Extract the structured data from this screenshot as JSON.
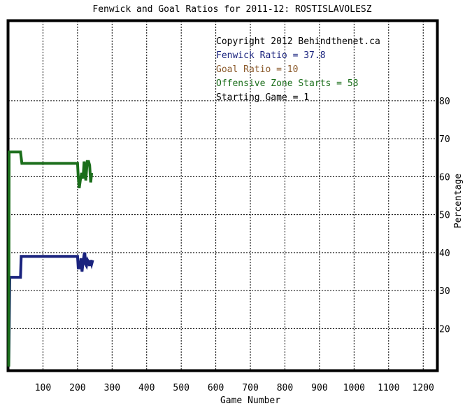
{
  "chart_data": {
    "type": "line",
    "title": "Fenwick and Goal Ratios for 2011-12: ROSTISLAVOLESZ",
    "xlabel": "Game Number",
    "ylabel": "Percentage",
    "xlim": [
      0,
      1240
    ],
    "ylim": [
      9,
      101
    ],
    "grid": true,
    "x_ticks": [
      100,
      200,
      300,
      400,
      500,
      600,
      700,
      800,
      900,
      1000,
      1100,
      1200
    ],
    "y_ticks": [
      20,
      30,
      40,
      50,
      60,
      70,
      80
    ],
    "y_axis_side": "right",
    "annotations": [
      {
        "id": "copyright",
        "text": "Copyright 2012 Behindthenet.ca",
        "color": "#000000"
      },
      {
        "id": "fenwick",
        "text": "Fenwick Ratio = 37.8",
        "color": "#1a237e"
      },
      {
        "id": "goal",
        "text": "Goal Ratio = 10",
        "color": "#8b5a2b"
      },
      {
        "id": "ozs",
        "text": "Offensive Zone Starts = 58",
        "color": "#1b6e1b"
      },
      {
        "id": "start",
        "text": "Starting Game = 1",
        "color": "#000000"
      }
    ],
    "series": [
      {
        "id": "fenwick",
        "color": "#1a237e",
        "points": [
          [
            1,
            10
          ],
          [
            4,
            33.5
          ],
          [
            35,
            33.5
          ],
          [
            37,
            39
          ],
          [
            200,
            39
          ],
          [
            202,
            36
          ],
          [
            207,
            36
          ],
          [
            210,
            38.5
          ],
          [
            213,
            35
          ],
          [
            216,
            37.5
          ],
          [
            219,
            39.5
          ],
          [
            221,
            40
          ],
          [
            223,
            37
          ],
          [
            226,
            36.5
          ],
          [
            229,
            38
          ],
          [
            232,
            37.5
          ],
          [
            235,
            36.5
          ],
          [
            238,
            38
          ],
          [
            241,
            37
          ],
          [
            244,
            38
          ]
        ]
      },
      {
        "id": "ozs",
        "color": "#1b6e1b",
        "points": [
          [
            1,
            10
          ],
          [
            2,
            66.5
          ],
          [
            35,
            66.5
          ],
          [
            39,
            63.5
          ],
          [
            200,
            63.5
          ],
          [
            202,
            60
          ],
          [
            205,
            57
          ],
          [
            208,
            59
          ],
          [
            212,
            61
          ],
          [
            216,
            59.5
          ],
          [
            219,
            64
          ],
          [
            222,
            62
          ],
          [
            224,
            59
          ],
          [
            228,
            64
          ],
          [
            232,
            64
          ],
          [
            235,
            63
          ],
          [
            238,
            58.5
          ],
          [
            241,
            61
          ]
        ]
      }
    ]
  }
}
